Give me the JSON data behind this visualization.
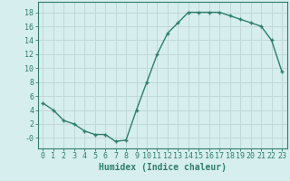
{
  "x": [
    0,
    1,
    2,
    3,
    4,
    5,
    6,
    7,
    8,
    9,
    10,
    11,
    12,
    13,
    14,
    15,
    16,
    17,
    18,
    19,
    20,
    21,
    22,
    23
  ],
  "y": [
    5,
    4,
    2.5,
    2,
    1,
    0.5,
    0.5,
    -0.5,
    -0.3,
    4,
    8,
    12,
    15,
    16.5,
    18,
    18,
    18,
    18,
    17.5,
    17,
    16.5,
    16,
    14,
    9.5
  ],
  "line_color": "#2e7d6e",
  "marker": "+",
  "bg_color": "#d6eeee",
  "grid_color": "#c0d8d8",
  "xlabel": "Humidex (Indice chaleur)",
  "xlim": [
    -0.5,
    23.5
  ],
  "ylim": [
    -1.5,
    19.5
  ],
  "yticks": [
    0,
    2,
    4,
    6,
    8,
    10,
    12,
    14,
    16,
    18
  ],
  "ytick_labels": [
    "-0",
    "2",
    "4",
    "6",
    "8",
    "10",
    "12",
    "14",
    "16",
    "18"
  ],
  "xticks": [
    0,
    1,
    2,
    3,
    4,
    5,
    6,
    7,
    8,
    9,
    10,
    11,
    12,
    13,
    14,
    15,
    16,
    17,
    18,
    19,
    20,
    21,
    22,
    23
  ],
  "tick_font_size": 6,
  "label_font_size": 7
}
